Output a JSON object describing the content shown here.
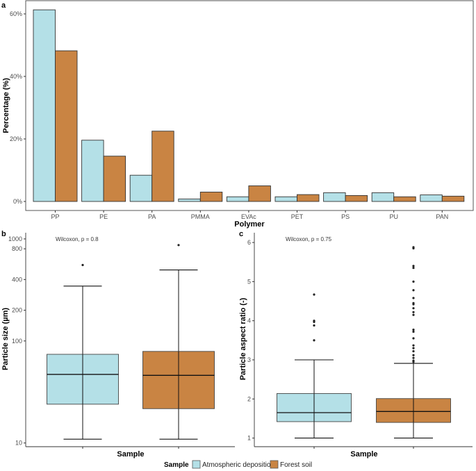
{
  "colors": {
    "atmospheric": "#b4e0e7",
    "forest": "#c98443",
    "outline": "#333333",
    "axis": "#333333"
  },
  "legend": {
    "title": "Sample",
    "items": [
      "Atmospheric deposition",
      "Forest soil"
    ]
  },
  "chart_data": [
    {
      "panel": "a",
      "type": "bar",
      "title": "",
      "xlabel": "Polymer",
      "ylabel": "Percentage (%)",
      "ylim": [
        0,
        62
      ],
      "yticks": [
        0,
        20,
        40,
        60
      ],
      "ytick_labels": [
        "0%",
        "20%",
        "40%",
        "60%"
      ],
      "categories": [
        "PP",
        "PE",
        "PA",
        "PMMA",
        "EVAc",
        "PET",
        "PS",
        "PU",
        "PAN"
      ],
      "series": [
        {
          "name": "Atmospheric deposition",
          "values": [
            61.3,
            19.6,
            8.4,
            0.8,
            1.5,
            1.5,
            2.8,
            2.8,
            2.1
          ]
        },
        {
          "name": "Forest soil",
          "values": [
            48.2,
            14.5,
            22.5,
            3.0,
            5.0,
            2.2,
            1.9,
            1.5,
            1.7
          ]
        }
      ],
      "grid": false
    },
    {
      "panel": "b",
      "type": "box",
      "xlabel": "Sample",
      "ylabel": "Particle size (µm)",
      "yscale": "log",
      "ylim": [
        9.2,
        1150
      ],
      "yticks": [
        10,
        100,
        200,
        400,
        800,
        1000
      ],
      "ytick_labels": [
        "10",
        "100",
        "200",
        "400",
        "800",
        "1000"
      ],
      "annotation": "Wilcoxon, p = 0.8",
      "series": [
        {
          "name": "Atmospheric deposition",
          "whisker_low": 10.9,
          "q1": 24,
          "median": 47,
          "q3": 74,
          "whisker_high": 345,
          "outliers": [
            555
          ]
        },
        {
          "name": "Forest soil",
          "whisker_low": 10.9,
          "q1": 21.7,
          "median": 46,
          "q3": 79,
          "whisker_high": 497,
          "outliers": [
            870
          ]
        }
      ]
    },
    {
      "panel": "c",
      "type": "box",
      "xlabel": "Sample",
      "ylabel": "Particle aspect ratio (-)",
      "yscale": "linear",
      "ylim": [
        0.78,
        6.25
      ],
      "yticks": [
        1,
        2,
        3,
        4,
        5,
        6
      ],
      "ytick_labels": [
        "1",
        "2",
        "3",
        "4",
        "5",
        "6"
      ],
      "annotation": "Wilcoxon, p = 0.75",
      "series": [
        {
          "name": "Atmospheric deposition",
          "whisker_low": 1.0,
          "q1": 1.42,
          "median": 1.65,
          "q3": 2.14,
          "whisker_high": 3.0,
          "outliers": [
            3.5,
            3.88,
            3.97,
            4.0,
            4.67
          ]
        },
        {
          "name": "Forest soil",
          "whisker_low": 1.0,
          "q1": 1.4,
          "median": 1.68,
          "q3": 2.01,
          "whisker_high": 2.91,
          "outliers": [
            2.95,
            2.98,
            3.05,
            3.12,
            3.22,
            3.3,
            3.37,
            3.55,
            3.72,
            3.77,
            4.15,
            4.22,
            4.32,
            4.42,
            4.45,
            4.58,
            4.78,
            5.0,
            5.35,
            5.4,
            5.85,
            5.88
          ]
        }
      ]
    }
  ]
}
